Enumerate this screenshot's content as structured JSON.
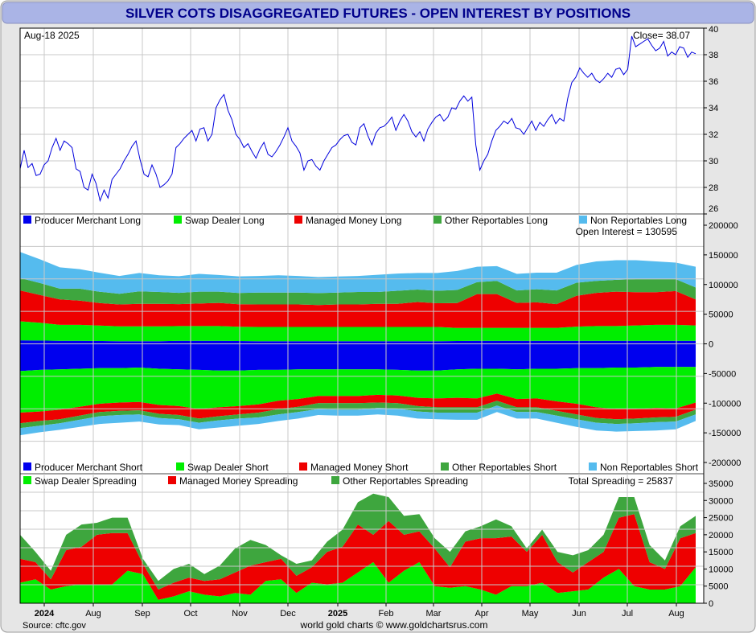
{
  "title": "SILVER COTS DISAGGREGATED FUTURES - OPEN INTEREST BY POSITIONS",
  "source": "Source: cftc.gov",
  "credit": "world gold charts © www.goldchartsrus.com",
  "colors": {
    "title_bar": "#aab4e6",
    "title_text": "#00008b",
    "price_line": "#0000dd",
    "producer": "#0000ee",
    "swap": "#00ee00",
    "managed": "#ee0000",
    "other": "#3ea63e",
    "nonrep": "#55bbee"
  },
  "x_axis": {
    "labels": [
      {
        "label": "2024",
        "bold": true
      },
      {
        "label": "Aug",
        "bold": false
      },
      {
        "label": "Sep",
        "bold": false
      },
      {
        "label": "Oct",
        "bold": false
      },
      {
        "label": "Nov",
        "bold": false
      },
      {
        "label": "Dec",
        "bold": false
      },
      {
        "label": "2025",
        "bold": true
      },
      {
        "label": "Feb",
        "bold": false
      },
      {
        "label": "Mar",
        "bold": false
      },
      {
        "label": "Apr",
        "bold": false
      },
      {
        "label": "May",
        "bold": false
      },
      {
        "label": "Jun",
        "bold": false
      },
      {
        "label": "Jul",
        "bold": false
      },
      {
        "label": "Aug",
        "bold": false
      }
    ]
  },
  "chart_data": [
    {
      "type": "line",
      "panel": "price",
      "date_label": "Aug-18  2025",
      "close_label": "Close= 38.07",
      "ylim": [
        26,
        40
      ],
      "yticks": [
        "26",
        "28",
        "30",
        "32",
        "34",
        "36",
        "38",
        "40"
      ],
      "series": [
        {
          "values": [
            29.4,
            30.8,
            29.5,
            29.8,
            28.9,
            29.0,
            29.7,
            30.0,
            31.0,
            31.7,
            30.8,
            31.5,
            31.3,
            31.0,
            29.4,
            29.2,
            28.0,
            27.8,
            29.0,
            28.3,
            27.0,
            27.8,
            27.2,
            28.6,
            29.0,
            29.4,
            30.0,
            30.5,
            31.1,
            31.5,
            30.1,
            29.0,
            28.8,
            29.7,
            29.0,
            28.0,
            28.2,
            28.5,
            29.0,
            31.0,
            31.3,
            31.7,
            32.0,
            32.3,
            31.5,
            32.4,
            32.5,
            31.5,
            32.0,
            34.0,
            34.6,
            35.0,
            33.8,
            33.1,
            32.0,
            31.6,
            31.0,
            31.3,
            30.7,
            30.2,
            30.9,
            31.4,
            30.5,
            30.3,
            30.7,
            31.2,
            31.8,
            32.5,
            31.5,
            31.1,
            30.6,
            29.3,
            30.0,
            30.1,
            29.6,
            29.3,
            30.0,
            30.5,
            31.0,
            31.2,
            31.6,
            31.9,
            32.0,
            31.4,
            31.2,
            32.5,
            32.8,
            31.9,
            31.2,
            32.1,
            32.5,
            32.6,
            32.9,
            33.3,
            32.3,
            33.0,
            33.5,
            33.0,
            32.2,
            31.8,
            32.2,
            31.5,
            32.4,
            32.9,
            33.3,
            33.5,
            33.0,
            33.3,
            34.0,
            33.9,
            34.5,
            34.9,
            34.5,
            34.8,
            31.2,
            29.3,
            30.0,
            30.5,
            31.5,
            32.3,
            32.6,
            33.0,
            32.8,
            33.2,
            32.5,
            32.4,
            32.0,
            32.5,
            33.0,
            32.3,
            32.9,
            32.6,
            33.1,
            33.5,
            32.8,
            33.2,
            33.0,
            34.7,
            35.9,
            36.3,
            37.0,
            36.6,
            36.3,
            36.6,
            36.1,
            35.9,
            36.2,
            36.6,
            36.3,
            36.9,
            37.0,
            36.5,
            36.9,
            39.4,
            38.6,
            38.8,
            39.0,
            39.2,
            38.7,
            38.3,
            38.5,
            39.0,
            37.9,
            38.2,
            38.0,
            38.6,
            38.5,
            37.8,
            38.2,
            38.07
          ]
        }
      ]
    },
    {
      "type": "area",
      "panel": "positions",
      "open_interest_label": "Open Interest = 130595",
      "ylim": [
        -200000,
        200000
      ],
      "yticks": [
        "-200000",
        "-150000",
        "-100000",
        "-50000",
        "0",
        "50000",
        "100000",
        "150000",
        "200000"
      ],
      "legend_long": [
        "Producer Merchant Long",
        "Swap Dealer Long",
        "Managed Money Long",
        "Other Reportables Long",
        "Non Reportables Long"
      ],
      "legend_short": [
        "Producer Merchant Short",
        "Swap Dealer Short",
        "Managed Money Short",
        "Other Reportables Short",
        "Non Reportables Short"
      ],
      "long_series": [
        {
          "name": "Producer Merchant Long",
          "values": [
            6000,
            5500,
            5000,
            5000,
            4800,
            4500,
            4500,
            4500,
            5000,
            5000,
            5000,
            4800,
            4500,
            4500,
            4500,
            4500,
            4500,
            4500,
            4500,
            4500,
            4500,
            4500,
            4800,
            5000,
            5000,
            5000,
            5000,
            5000,
            5000,
            5000,
            5000,
            5000,
            5000,
            5000,
            5000
          ]
        },
        {
          "name": "Swap Dealer Long",
          "values": [
            32000,
            30000,
            27000,
            27000,
            26000,
            25000,
            25000,
            25000,
            25000,
            25000,
            25000,
            24000,
            24000,
            24000,
            24000,
            24000,
            24000,
            24000,
            24000,
            24000,
            24000,
            24000,
            22000,
            22000,
            22000,
            22000,
            22000,
            22000,
            24000,
            25000,
            25000,
            26000,
            27000,
            27000,
            26000
          ]
        },
        {
          "name": "Managed Money Long",
          "values": [
            52000,
            47000,
            43000,
            41000,
            38000,
            37000,
            38000,
            38000,
            37000,
            38000,
            39000,
            38000,
            38000,
            38000,
            38000,
            37000,
            38000,
            38000,
            39000,
            39000,
            42000,
            40000,
            42000,
            57000,
            57000,
            42000,
            43000,
            40000,
            52000,
            56000,
            58000,
            56000,
            55000,
            57000,
            44000
          ]
        },
        {
          "name": "Other Reportables Long",
          "values": [
            21000,
            20000,
            18000,
            20000,
            19000,
            18000,
            21000,
            20000,
            19000,
            20000,
            19000,
            19000,
            20000,
            20000,
            20000,
            20000,
            20000,
            21000,
            20000,
            22000,
            21000,
            21000,
            22000,
            20000,
            22000,
            21000,
            22000,
            23000,
            22000,
            20000,
            20000,
            22000,
            22000,
            20000,
            20000
          ]
        },
        {
          "name": "Non Reportables Long",
          "values": [
            44000,
            40000,
            36000,
            33000,
            32000,
            30000,
            31000,
            28000,
            28000,
            30000,
            28000,
            28000,
            28000,
            29000,
            28000,
            27000,
            27000,
            27000,
            29000,
            29000,
            28000,
            30000,
            32000,
            26000,
            25000,
            28000,
            28000,
            30000,
            30000,
            33000,
            33000,
            32000,
            30000,
            28000,
            35000
          ]
        }
      ],
      "short_series": [
        {
          "name": "Producer Merchant Short",
          "values": [
            46000,
            44000,
            43000,
            42000,
            41000,
            41000,
            40000,
            42000,
            43000,
            44000,
            45000,
            45000,
            44000,
            44000,
            43000,
            43000,
            43000,
            43000,
            43000,
            44000,
            45000,
            45000,
            43000,
            42000,
            42000,
            43000,
            42000,
            42000,
            41000,
            41000,
            40000,
            40000,
            39000,
            39000,
            39000
          ]
        },
        {
          "name": "Swap Dealer Short",
          "values": [
            70000,
            70000,
            68000,
            64000,
            60000,
            58000,
            58000,
            61000,
            62000,
            66000,
            62000,
            60000,
            58000,
            52000,
            50000,
            45000,
            45000,
            45000,
            43000,
            43000,
            46000,
            47000,
            48000,
            50000,
            42000,
            50000,
            50000,
            55000,
            60000,
            66000,
            70000,
            70000,
            69000,
            70000,
            60000
          ]
        },
        {
          "name": "Managed Money Short",
          "values": [
            18000,
            16000,
            16000,
            15000,
            14000,
            14000,
            14000,
            15000,
            15000,
            16000,
            15000,
            14000,
            14000,
            14000,
            13000,
            12000,
            12000,
            12000,
            13000,
            13000,
            14000,
            15000,
            16000,
            15000,
            12000,
            14000,
            15000,
            16000,
            18000,
            18000,
            17000,
            16000,
            16000,
            14000,
            12000
          ]
        },
        {
          "name": "Other Reportables Short",
          "values": [
            8000,
            8000,
            7000,
            7000,
            7000,
            7000,
            7000,
            7000,
            7000,
            7000,
            7000,
            7000,
            8000,
            9000,
            9000,
            10000,
            11000,
            11000,
            9000,
            9000,
            9000,
            9000,
            9000,
            9000,
            8000,
            8000,
            8000,
            8000,
            8000,
            8000,
            8000,
            8000,
            8000,
            8000,
            8000
          ]
        },
        {
          "name": "Non Reportables Short",
          "values": [
            12000,
            11000,
            11000,
            12000,
            13000,
            13000,
            12000,
            11000,
            10000,
            11000,
            12000,
            12000,
            11000,
            11000,
            11000,
            10000,
            10000,
            10000,
            11000,
            12000,
            12000,
            11000,
            12000,
            12000,
            11000,
            11000,
            11000,
            12000,
            13000,
            13000,
            13000,
            13000,
            14000,
            13000,
            11000
          ]
        }
      ]
    },
    {
      "type": "area",
      "panel": "spreading",
      "total_label": "Total Spreading = 25837",
      "ylim": [
        0,
        35000
      ],
      "yticks": [
        "0",
        "5000",
        "10000",
        "15000",
        "20000",
        "25000",
        "30000",
        "35000"
      ],
      "series": [
        {
          "name": "Swap Dealer Spreading",
          "values": [
            6000,
            7000,
            4000,
            5000,
            5500,
            5500,
            5500,
            9500,
            8500,
            1000,
            2000,
            3500,
            2500,
            2000,
            3000,
            2500,
            6500,
            7000,
            3000,
            6000,
            5500,
            6000,
            9000,
            12000,
            6000,
            9500,
            12000,
            5000,
            4500,
            5000,
            4000,
            2500,
            5000,
            5000,
            6000,
            3000,
            3500,
            4000,
            7500,
            10000,
            5000,
            4000,
            4000,
            5000,
            10500
          ]
        },
        {
          "name": "Managed Money Spreading",
          "values": [
            7000,
            5000,
            3000,
            10500,
            11000,
            14500,
            15000,
            11000,
            3000,
            3000,
            4000,
            4000,
            4000,
            5000,
            6000,
            8500,
            5500,
            6000,
            5000,
            4500,
            9500,
            10500,
            14000,
            8000,
            18000,
            10500,
            9000,
            11000,
            6000,
            13000,
            15000,
            16500,
            14500,
            10000,
            14000,
            9000,
            5500,
            8000,
            7500,
            15000,
            21000,
            8000,
            6000,
            14000,
            10000
          ]
        },
        {
          "name": "Other Reportables Spreading",
          "values": [
            7000,
            3000,
            2500,
            4500,
            6500,
            3500,
            4500,
            4500,
            1500,
            2500,
            4000,
            4000,
            2000,
            4000,
            7000,
            7500,
            5000,
            1000,
            3500,
            2000,
            3000,
            5000,
            6500,
            12000,
            7000,
            5500,
            5000,
            3000,
            4500,
            3000,
            3500,
            5500,
            3000,
            1000,
            1500,
            3000,
            5000,
            3500,
            5000,
            6000,
            5000,
            5000,
            2500,
            3500,
            5000
          ]
        }
      ]
    }
  ]
}
